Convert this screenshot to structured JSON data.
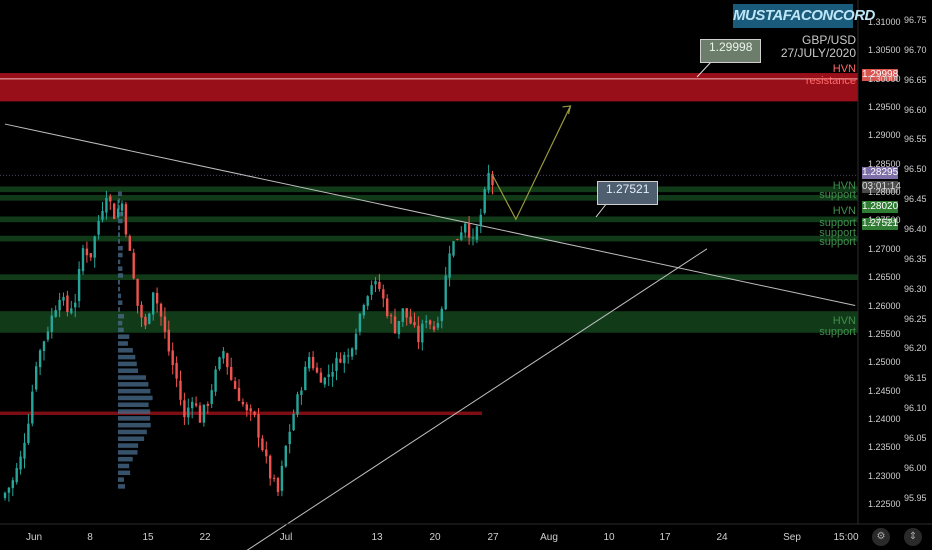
{
  "brand": "MUSTAFACONCORD",
  "header": {
    "pair": "GBP/USD",
    "date": "27/JULY/2020"
  },
  "callouts": [
    {
      "text": "1.29998"
    },
    {
      "text": "1.27521"
    }
  ],
  "zone_labels": {
    "resistance_hvn": "HVN",
    "resistance_text": "resistance",
    "upper_hvn": "HVN",
    "upper_support": "support",
    "mid_hvn": "HVN",
    "mid_support1": "support",
    "mid_support2": "support",
    "mid_support3": "support",
    "lower_hvn": "HVN",
    "lower_support": "support"
  },
  "price_tags": {
    "resistance": "1.29998",
    "current": "1.28295",
    "countdown": "03:01:14",
    "support1": "1.28020",
    "support2": "1.27521"
  },
  "colors": {
    "up": "#26a69a",
    "down": "#ef5350",
    "resistance": "#b3121e",
    "support": "#1f6b2c",
    "current": "#7e6fa8"
  },
  "axis_right": [
    "1.31000",
    "1.30500",
    "1.30000",
    "1.29500",
    "1.29000",
    "1.28500",
    "1.28000",
    "1.27500",
    "1.27000",
    "1.26500",
    "1.26000",
    "1.25500",
    "1.25000",
    "1.24500",
    "1.24000",
    "1.23500",
    "1.23000",
    "1.22500"
  ],
  "axis_left": [
    "96.75",
    "96.70",
    "96.65",
    "96.60",
    "96.55",
    "96.50",
    "96.45",
    "96.40",
    "96.35",
    "96.30",
    "96.25",
    "96.20",
    "96.15",
    "96.10",
    "96.05",
    "96.00",
    "95.95"
  ],
  "axis_x": [
    "Jun",
    "8",
    "15",
    "22",
    "Jul",
    "13",
    "20",
    "27",
    "Aug",
    "10",
    "17",
    "24",
    "Sep",
    "15:00"
  ],
  "chart_data": {
    "type": "candlestick",
    "symbol": "GBP/USD",
    "ylim": [
      1.2215,
      1.3121
    ],
    "yticks": [
      1.31,
      1.305,
      1.3,
      1.295,
      1.29,
      1.285,
      1.28,
      1.275,
      1.27,
      1.265,
      1.26,
      1.255,
      1.25,
      1.245,
      1.24,
      1.235,
      1.23,
      1.225
    ],
    "xticks": [
      "Jun",
      "8",
      "15",
      "22",
      "Jul",
      "13",
      "20",
      "27",
      "Aug",
      "10",
      "17",
      "24",
      "Sep",
      "15:00"
    ],
    "close_path": [
      [
        0,
        1.227
      ],
      [
        2,
        1.229
      ],
      [
        4,
        1.233
      ],
      [
        6,
        1.24
      ],
      [
        8,
        1.25
      ],
      [
        10,
        1.254
      ],
      [
        12,
        1.258
      ],
      [
        14,
        1.262
      ],
      [
        16,
        1.259
      ],
      [
        18,
        1.261
      ],
      [
        20,
        1.27
      ],
      [
        22,
        1.269
      ],
      [
        24,
        1.275
      ],
      [
        26,
        1.28
      ],
      [
        28,
        1.276
      ],
      [
        30,
        1.278
      ],
      [
        32,
        1.269
      ],
      [
        34,
        1.26
      ],
      [
        36,
        1.256
      ],
      [
        38,
        1.263
      ],
      [
        40,
        1.258
      ],
      [
        42,
        1.252
      ],
      [
        44,
        1.247
      ],
      [
        46,
        1.24
      ],
      [
        48,
        1.244
      ],
      [
        50,
        1.24
      ],
      [
        52,
        1.243
      ],
      [
        54,
        1.248
      ],
      [
        56,
        1.252
      ],
      [
        58,
        1.247
      ],
      [
        60,
        1.244
      ],
      [
        62,
        1.241
      ],
      [
        64,
        1.24
      ],
      [
        66,
        1.235
      ],
      [
        68,
        1.23
      ],
      [
        70,
        1.227
      ],
      [
        72,
        1.235
      ],
      [
        74,
        1.241
      ],
      [
        76,
        1.246
      ],
      [
        78,
        1.251
      ],
      [
        80,
        1.248
      ],
      [
        82,
        1.247
      ],
      [
        84,
        1.249
      ],
      [
        86,
        1.251
      ],
      [
        88,
        1.251
      ],
      [
        90,
        1.256
      ],
      [
        92,
        1.261
      ],
      [
        94,
        1.264
      ],
      [
        96,
        1.263
      ],
      [
        98,
        1.259
      ],
      [
        100,
        1.256
      ],
      [
        102,
        1.259
      ],
      [
        104,
        1.257
      ],
      [
        106,
        1.254
      ],
      [
        108,
        1.258
      ],
      [
        110,
        1.256
      ],
      [
        112,
        1.26
      ],
      [
        114,
        1.27
      ],
      [
        116,
        1.272
      ],
      [
        118,
        1.275
      ],
      [
        120,
        1.271
      ],
      [
        122,
        1.276
      ],
      [
        124,
        1.283
      ],
      [
        125,
        1.2815
      ]
    ],
    "bar_count": 126,
    "forecast_path": [
      [
        125,
        1.283
      ],
      [
        131,
        1.2752
      ],
      [
        145,
        1.2952
      ]
    ],
    "levels": [
      {
        "name": "HVN resistance",
        "value": 1.29998,
        "zone": [
          1.296,
          1.301
        ]
      },
      {
        "name": "HVN support",
        "value": 1.2805,
        "zone": [
          1.28,
          1.281
        ]
      },
      {
        "name": "HVN support",
        "value": 1.279,
        "zone": [
          1.2785,
          1.2795
        ]
      },
      {
        "name": "HVN support",
        "value": 1.2752,
        "zone": [
          1.2747,
          1.2757
        ]
      },
      {
        "name": "HVN support",
        "value": 1.2718,
        "zone": [
          1.2713,
          1.2723
        ]
      },
      {
        "name": "support",
        "value": 1.265,
        "zone": [
          1.2645,
          1.2655
        ]
      },
      {
        "name": "HVN support",
        "value": 1.257,
        "zone": [
          1.2552,
          1.259
        ]
      },
      {
        "name": "level",
        "value": 1.241,
        "zone": [
          1.2407,
          1.2413
        ]
      }
    ],
    "trendlines": [
      {
        "name": "descending",
        "from": [
          0,
          1.292
        ],
        "to": [
          218,
          1.26
        ]
      },
      {
        "name": "ascending",
        "from": [
          58,
          1.215
        ],
        "to": [
          180,
          1.27
        ]
      }
    ],
    "current_price": 1.28295
  }
}
